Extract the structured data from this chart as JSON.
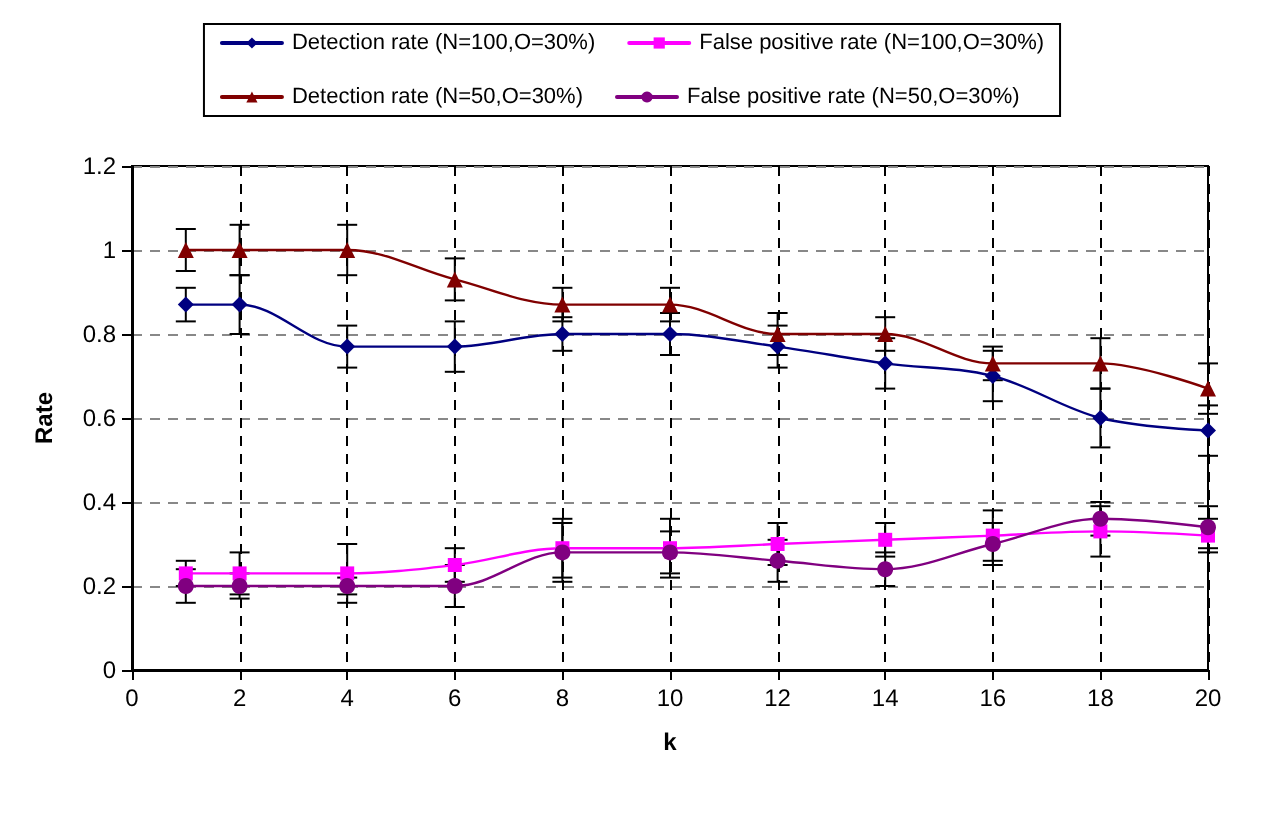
{
  "chart_data": {
    "type": "line",
    "xlabel": "k",
    "ylabel": "Rate",
    "x": [
      1,
      2,
      4,
      6,
      8,
      10,
      12,
      14,
      16,
      18,
      20
    ],
    "xlim": [
      0,
      20
    ],
    "xticks": [
      0,
      2,
      4,
      6,
      8,
      10,
      12,
      14,
      16,
      18,
      20
    ],
    "ylim": [
      0,
      1.2
    ],
    "yticks": [
      0,
      0.2,
      0.4,
      0.6,
      0.8,
      1,
      1.2
    ],
    "grid": true,
    "legend": "top",
    "line_style": "solid",
    "series": [
      {
        "name": "Detection rate (N=100,O=30%)",
        "color": "#000080",
        "marker": "diamond",
        "values": [
          0.87,
          0.87,
          0.77,
          0.77,
          0.8,
          0.8,
          0.77,
          0.73,
          0.7,
          0.6,
          0.57
        ],
        "errors": [
          0.04,
          0.07,
          0.05,
          0.06,
          0.04,
          0.05,
          0.05,
          0.06,
          0.06,
          0.07,
          0.06
        ]
      },
      {
        "name": "False positive rate (N=100,O=30%)",
        "color": "#ff00ff",
        "marker": "square",
        "values": [
          0.23,
          0.23,
          0.23,
          0.25,
          0.29,
          0.29,
          0.3,
          0.31,
          0.32,
          0.33,
          0.32
        ],
        "errors": [
          0.03,
          0.05,
          0.07,
          0.04,
          0.07,
          0.07,
          0.05,
          0.04,
          0.06,
          0.06,
          0.04
        ]
      },
      {
        "name": "Detection rate (N=50,O=30%)",
        "color": "#800000",
        "marker": "triangle",
        "values": [
          1,
          1,
          1,
          0.93,
          0.87,
          0.87,
          0.8,
          0.8,
          0.73,
          0.73,
          0.67
        ],
        "errors": [
          0.05,
          0.06,
          0.06,
          0.05,
          0.04,
          0.04,
          0.05,
          0.04,
          0.04,
          0.06,
          0.06
        ]
      },
      {
        "name": "False positive rate (N=50,O=30%)",
        "color": "#800080",
        "marker": "circle",
        "values": [
          0.2,
          0.2,
          0.2,
          0.2,
          0.28,
          0.28,
          0.26,
          0.24,
          0.3,
          0.36,
          0.34
        ],
        "errors": [
          0.04,
          0.03,
          0.02,
          0.05,
          0.07,
          0.05,
          0.05,
          0.04,
          0.05,
          0.04,
          0.05
        ]
      }
    ]
  }
}
